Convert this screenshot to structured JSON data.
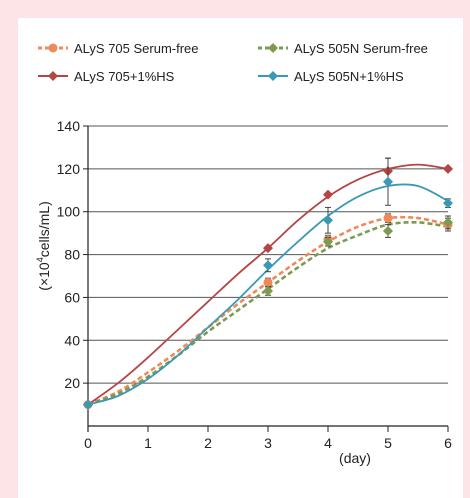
{
  "chart_data": {
    "type": "line",
    "xlabel": "(day)",
    "ylabel_main": "(×10",
    "ylabel_sup": "4",
    "ylabel_rest": "cells/mL)",
    "xlim": [
      0,
      6
    ],
    "ylim": [
      0,
      140
    ],
    "x_ticks": [
      "0",
      "1",
      "2",
      "3",
      "4",
      "5",
      "6"
    ],
    "y_ticks": [
      "20",
      "40",
      "60",
      "80",
      "100",
      "120",
      "140"
    ],
    "legend_position": "top",
    "grid": "horizontal",
    "series": [
      {
        "name": "ALyS 705 Serum-free",
        "color": "#f0895a",
        "dashed": true,
        "marker": "circle",
        "x": [
          0,
          3,
          4,
          5,
          6
        ],
        "y": [
          10,
          67,
          87,
          97,
          94
        ],
        "err": [
          0,
          2,
          2,
          2,
          3
        ],
        "curve": [
          [
            0,
            10
          ],
          [
            0.5,
            16
          ],
          [
            1,
            25
          ],
          [
            1.5,
            35
          ],
          [
            2,
            46
          ],
          [
            2.5,
            57
          ],
          [
            3,
            67
          ],
          [
            3.5,
            77
          ],
          [
            4,
            86
          ],
          [
            4.5,
            93
          ],
          [
            5,
            97
          ],
          [
            5.5,
            97
          ],
          [
            6,
            94
          ]
        ]
      },
      {
        "name": "ALyS 505N Serum-free",
        "color": "#7d9a4e",
        "dashed": true,
        "marker": "diamond",
        "x": [
          0,
          3,
          4,
          5,
          6
        ],
        "y": [
          10,
          63,
          86,
          91,
          95
        ],
        "err": [
          0,
          2,
          2,
          3,
          3
        ],
        "curve": [
          [
            0,
            10
          ],
          [
            0.5,
            15
          ],
          [
            1,
            23
          ],
          [
            1.5,
            33
          ],
          [
            2,
            44
          ],
          [
            2.5,
            54
          ],
          [
            3,
            64
          ],
          [
            3.5,
            74
          ],
          [
            4,
            83
          ],
          [
            4.5,
            89
          ],
          [
            5,
            94
          ],
          [
            5.5,
            95
          ],
          [
            6,
            93
          ]
        ]
      },
      {
        "name": "ALyS 705+1%HS",
        "color": "#b54545",
        "dashed": false,
        "marker": "diamond",
        "x": [
          0,
          3,
          4,
          5,
          6
        ],
        "y": [
          10,
          83,
          108,
          119,
          120
        ],
        "err": [
          0,
          0,
          0,
          6,
          0
        ],
        "curve": [
          [
            0,
            10
          ],
          [
            0.5,
            20
          ],
          [
            1,
            32
          ],
          [
            1.5,
            45
          ],
          [
            2,
            58
          ],
          [
            2.5,
            71
          ],
          [
            3,
            83
          ],
          [
            3.5,
            96
          ],
          [
            4,
            107
          ],
          [
            4.5,
            115
          ],
          [
            5,
            120
          ],
          [
            5.5,
            122
          ],
          [
            6,
            120
          ]
        ]
      },
      {
        "name": "ALyS 505N+1%HS",
        "color": "#3a9ab5",
        "dashed": false,
        "marker": "diamond",
        "x": [
          0,
          3,
          4,
          5,
          6
        ],
        "y": [
          10,
          75,
          96,
          114,
          104
        ],
        "err": [
          0,
          3,
          6,
          11,
          2
        ],
        "curve": [
          [
            0,
            10
          ],
          [
            0.5,
            14
          ],
          [
            1,
            22
          ],
          [
            1.5,
            33
          ],
          [
            2,
            46
          ],
          [
            2.5,
            59
          ],
          [
            3,
            73
          ],
          [
            3.5,
            86
          ],
          [
            4,
            98
          ],
          [
            4.5,
            107
          ],
          [
            5,
            112
          ],
          [
            5.5,
            112
          ],
          [
            6,
            105
          ]
        ]
      }
    ]
  }
}
